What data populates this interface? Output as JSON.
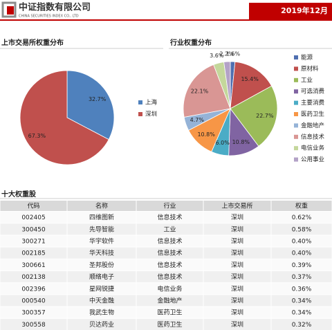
{
  "header": {
    "company": "中证指数有限公司",
    "company_en": "CHINA SECURITIES INDEX CO., LTD",
    "date": "2019年12月"
  },
  "chart_data": [
    {
      "type": "pie",
      "title": "上市交易所权重分布",
      "categories": [
        "上海",
        "深圳"
      ],
      "values": [
        32.7,
        67.3
      ],
      "value_labels": [
        "32.7%",
        "67.3%"
      ],
      "colors": [
        "#4f81bd",
        "#c0504d"
      ]
    },
    {
      "type": "pie",
      "title": "行业权重分布",
      "categories": [
        "能源",
        "原材料",
        "工业",
        "可选消费",
        "主要消费",
        "医药卫生",
        "金融地产",
        "信息技术",
        "电信业务",
        "公用事业"
      ],
      "values": [
        1.6,
        15.4,
        22.7,
        10.8,
        6.0,
        10.8,
        4.7,
        22.1,
        3.6,
        2.2
      ],
      "value_labels": [
        "1.6%",
        "15.4%",
        "22.7%",
        "10.8%",
        "6.0%",
        "10.8%",
        "4.7%",
        "22.1%",
        "3.6%",
        "2.2%"
      ],
      "colors": [
        "#4f6fb0",
        "#c0504d",
        "#9bbb59",
        "#8064a2",
        "#4bacc6",
        "#f79646",
        "#95b3d7",
        "#d99694",
        "#c4d79b",
        "#b3a2c7"
      ]
    }
  ],
  "table": {
    "title": "十大权重股",
    "headers": [
      "代码",
      "名称",
      "行业",
      "上市交易所",
      "权重"
    ],
    "rows": [
      [
        "002405",
        "四维图新",
        "信息技术",
        "深圳",
        "0.62%"
      ],
      [
        "300450",
        "先导智能",
        "工业",
        "深圳",
        "0.58%"
      ],
      [
        "300271",
        "华宇软件",
        "信息技术",
        "深圳",
        "0.40%"
      ],
      [
        "002185",
        "华天科技",
        "信息技术",
        "深圳",
        "0.40%"
      ],
      [
        "300661",
        "圣邦股份",
        "信息技术",
        "深圳",
        "0.39%"
      ],
      [
        "002138",
        "顺络电子",
        "信息技术",
        "深圳",
        "0.37%"
      ],
      [
        "002396",
        "星网锐捷",
        "电信业务",
        "深圳",
        "0.36%"
      ],
      [
        "000540",
        "中天金融",
        "金融地产",
        "深圳",
        "0.34%"
      ],
      [
        "300357",
        "我武生物",
        "医药卫生",
        "深圳",
        "0.34%"
      ],
      [
        "300558",
        "贝达药业",
        "医药卫生",
        "深圳",
        "0.32%"
      ]
    ]
  }
}
